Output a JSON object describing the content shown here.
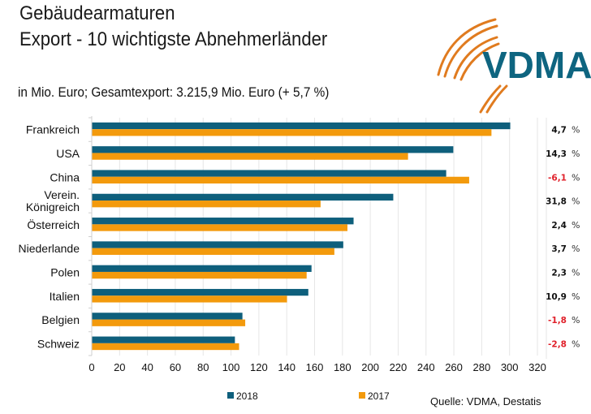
{
  "header": {
    "title_line1": "Gebäudearmaturen",
    "title_line2": "Export - 10 wichtigste Abnehmerländer",
    "subtitle": "in Mio. Euro; Gesamtexport: 3.215,9 Mio. Euro (+ 5,7 %)"
  },
  "logo": {
    "text": "VDMA",
    "text_color": "#0e6580",
    "arc_color": "#e07b1f"
  },
  "source": "Quelle: VDMA, Destatis",
  "colors": {
    "series_2018": "#0e5f7c",
    "series_2017": "#f39a0c",
    "positive_change": "#111111",
    "negative_change": "#e0202a"
  },
  "chart_data": {
    "type": "bar",
    "orientation": "horizontal",
    "title": "Gebäudearmaturen Export - 10 wichtigste Abnehmerländer",
    "subtitle": "in Mio. Euro; Gesamtexport: 3.215,9 Mio. Euro (+ 5,7 %)",
    "xlabel": "",
    "ylabel": "",
    "xlim": [
      0,
      320
    ],
    "xticks": [
      0,
      20,
      40,
      60,
      80,
      100,
      120,
      140,
      160,
      180,
      200,
      220,
      240,
      260,
      280,
      300,
      320
    ],
    "grid": true,
    "legend_position": "bottom",
    "categories": [
      {
        "label_lines": [
          "Frankreich"
        ]
      },
      {
        "label_lines": [
          "USA"
        ]
      },
      {
        "label_lines": [
          "China"
        ]
      },
      {
        "label_lines": [
          "Verein.",
          "Königreich"
        ]
      },
      {
        "label_lines": [
          "Österreich"
        ]
      },
      {
        "label_lines": [
          "Niederlande"
        ]
      },
      {
        "label_lines": [
          "Polen"
        ]
      },
      {
        "label_lines": [
          "Italien"
        ]
      },
      {
        "label_lines": [
          "Belgien"
        ]
      },
      {
        "label_lines": [
          "Schweiz"
        ]
      }
    ],
    "series": [
      {
        "name": "2018",
        "values": [
          300.5,
          259.6,
          254.5,
          216.5,
          188.0,
          180.6,
          157.8,
          155.5,
          108.2,
          102.8
        ]
      },
      {
        "name": "2017",
        "values": [
          287.0,
          227.1,
          271.0,
          164.3,
          183.6,
          174.2,
          154.3,
          140.2,
          110.2,
          105.8
        ]
      }
    ],
    "change_pct": [
      "4,7",
      "14,3",
      "-6,1",
      "31,8",
      "2,4",
      "3,7",
      "2,3",
      "10,9",
      "-1,8",
      "-2,8"
    ],
    "change_negative": [
      false,
      false,
      true,
      false,
      false,
      false,
      false,
      false,
      true,
      true
    ],
    "pct_sign": "%",
    "legend": [
      "2018",
      "2017"
    ],
    "source": "Quelle: VDMA, Destatis"
  }
}
